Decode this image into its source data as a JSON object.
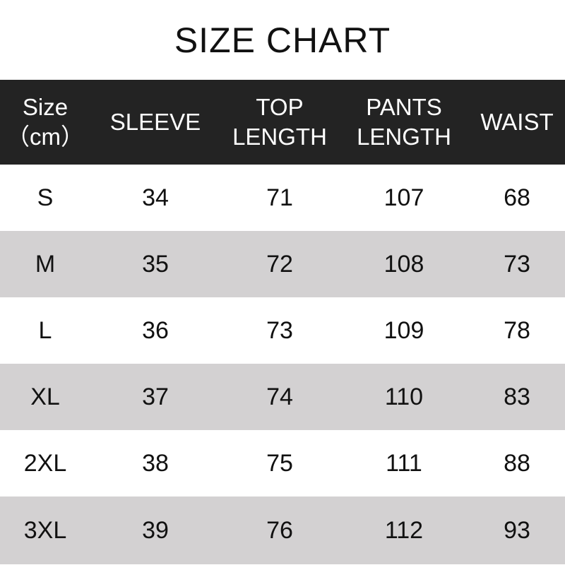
{
  "title": "SIZE CHART",
  "headers": [
    {
      "line1": "Size",
      "line2": "（cm）"
    },
    {
      "line1": "SLEEVE",
      "line2": ""
    },
    {
      "line1": "TOP",
      "line2": "LENGTH"
    },
    {
      "line1": "PANTS",
      "line2": "LENGTH"
    },
    {
      "line1": "WAIST",
      "line2": ""
    }
  ],
  "rows": [
    [
      "S",
      "34",
      "71",
      "107",
      "68"
    ],
    [
      "M",
      "35",
      "72",
      "108",
      "73"
    ],
    [
      "L",
      "36",
      "73",
      "109",
      "78"
    ],
    [
      "XL",
      "37",
      "74",
      "110",
      "83"
    ],
    [
      "2XL",
      "38",
      "75",
      "111",
      "88"
    ],
    [
      "3XL",
      "39",
      "76",
      "112",
      "93"
    ]
  ],
  "colors": {
    "header_bg": "#232323",
    "stripe": "#d3d1d2"
  }
}
